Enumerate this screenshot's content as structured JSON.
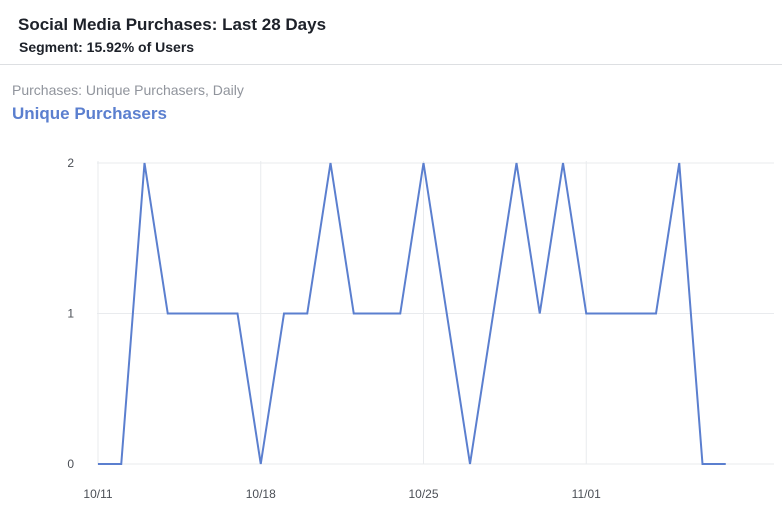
{
  "header": {
    "title": "Social Media Purchases: Last 28 Days",
    "segment": "Segment: 15.92% of Users"
  },
  "panel": {
    "subtitle": "Purchases: Unique Purchasers, Daily",
    "series_title": "Unique Purchasers"
  },
  "colors": {
    "line": "#5b7fcf",
    "grid": "#e9ebee"
  },
  "chart_data": {
    "type": "line",
    "title": "Unique Purchasers",
    "xlabel": "",
    "ylabel": "",
    "ylim": [
      0,
      2
    ],
    "yticks": [
      0,
      1,
      2
    ],
    "xticks": [
      "10/11",
      "10/18",
      "10/25",
      "11/01"
    ],
    "x": [
      "10/11",
      "10/12",
      "10/13",
      "10/14",
      "10/15",
      "10/16",
      "10/17",
      "10/18",
      "10/19",
      "10/20",
      "10/21",
      "10/22",
      "10/23",
      "10/24",
      "10/25",
      "10/26",
      "10/27",
      "10/28",
      "10/29",
      "10/30",
      "10/31",
      "11/01",
      "11/02",
      "11/03",
      "11/04",
      "11/05",
      "11/06",
      "11/07"
    ],
    "series": [
      {
        "values": [
          0,
          0,
          2,
          1,
          1,
          1,
          1,
          0,
          1,
          1,
          2,
          1,
          1,
          1,
          2,
          1,
          0,
          1,
          2,
          1,
          2,
          1,
          1,
          1,
          1,
          2,
          0,
          0
        ]
      }
    ],
    "grid": true
  }
}
